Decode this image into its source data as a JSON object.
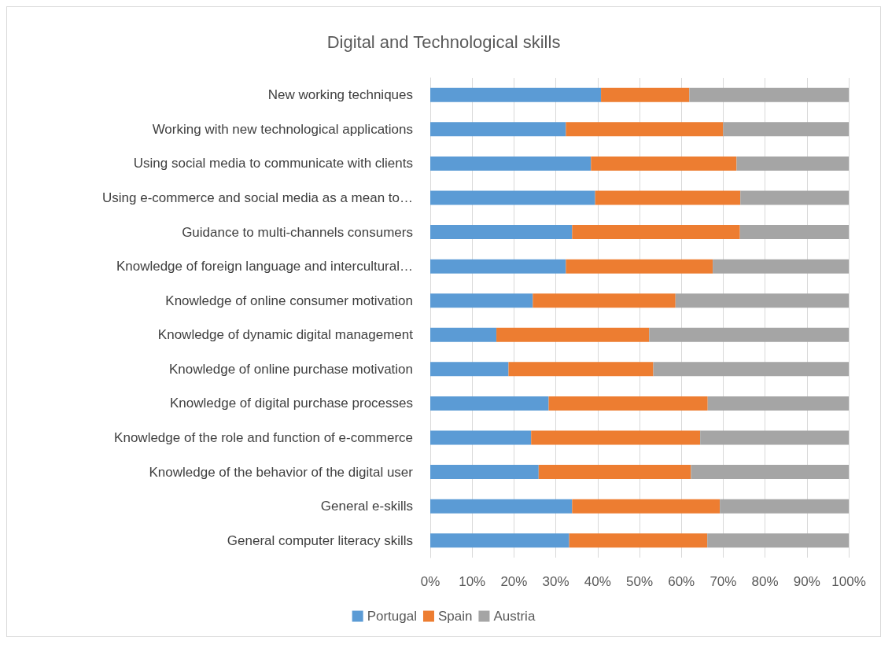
{
  "chart_data": {
    "type": "bar",
    "orientation": "horizontal",
    "stacked": true,
    "title": "Digital and Technological skills",
    "categories": [
      "New working techniques",
      "Working with new technological applications",
      "Using social media to communicate with clients",
      "Using e-commerce and social media as a mean to…",
      "Guidance to multi-channels consumers",
      "Knowledge of foreign language and intercultural…",
      "Knowledge of online consumer motivation",
      "Knowledge of dynamic digital management",
      "Knowledge of online purchase motivation",
      "Knowledge of digital purchase processes",
      "Knowledge of the role and function of e-commerce",
      "Knowledge of the behavior of the digital user",
      "General e-skills",
      "General computer literacy skills"
    ],
    "series": [
      {
        "name": "Portugal",
        "color": "#5b9bd5",
        "values": [
          40.8,
          32.4,
          38.4,
          39.4,
          33.9,
          32.4,
          24.5,
          15.8,
          18.7,
          28.3,
          24.1,
          25.9,
          33.9,
          33.2
        ]
      },
      {
        "name": "Spain",
        "color": "#ed7d31",
        "values": [
          21.1,
          37.6,
          34.8,
          34.7,
          40.1,
          35.1,
          34.1,
          36.5,
          34.6,
          38.0,
          40.4,
          36.4,
          35.3,
          33.0
        ]
      },
      {
        "name": "Austria",
        "color": "#a5a5a5",
        "values": [
          38.1,
          30.0,
          26.8,
          25.9,
          26.0,
          32.5,
          41.4,
          47.7,
          46.7,
          33.7,
          35.5,
          37.7,
          30.8,
          33.8
        ]
      }
    ],
    "xlim": [
      0,
      100
    ],
    "xticks": [
      {
        "value": 0,
        "label": "0%"
      },
      {
        "value": 10,
        "label": "10%"
      },
      {
        "value": 20,
        "label": "20%"
      },
      {
        "value": 30,
        "label": "30%"
      },
      {
        "value": 40,
        "label": "40%"
      },
      {
        "value": 50,
        "label": "50%"
      },
      {
        "value": 60,
        "label": "60%"
      },
      {
        "value": 70,
        "label": "70%"
      },
      {
        "value": 80,
        "label": "80%"
      },
      {
        "value": 90,
        "label": "90%"
      },
      {
        "value": 100,
        "label": "100%"
      }
    ],
    "grid": "x",
    "legend": "bottom"
  }
}
